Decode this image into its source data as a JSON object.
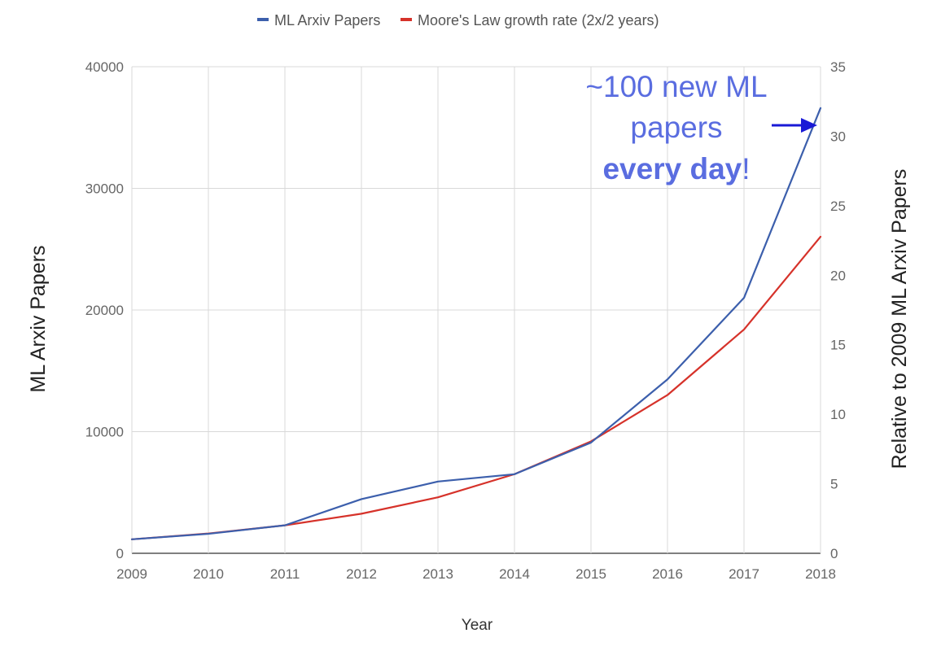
{
  "chart_data": {
    "type": "line",
    "title": "",
    "xlabel": "Year",
    "ylabel": "ML Arxiv Papers",
    "y2label": "Relative to 2009 ML Arxiv Papers",
    "categories": [
      "2009",
      "2010",
      "2011",
      "2012",
      "2013",
      "2014",
      "2015",
      "2016",
      "2017",
      "2018"
    ],
    "ylim": [
      0,
      40000
    ],
    "y2lim": [
      0,
      35
    ],
    "yticks": [
      "0",
      "10000",
      "20000",
      "30000",
      "40000"
    ],
    "y2ticks": [
      "0",
      "5",
      "10",
      "15",
      "20",
      "25",
      "30",
      "35"
    ],
    "grid": true,
    "legend_position": "top",
    "series": [
      {
        "name": "ML Arxiv Papers",
        "color": "#3c5fac",
        "values": [
          1150,
          1600,
          2300,
          4450,
          5900,
          6500,
          9100,
          14300,
          21000,
          36600
        ]
      },
      {
        "name": "Moore's Law growth rate (2x/2 years)",
        "color": "#d6322a",
        "values": [
          1150,
          1626,
          2300,
          3253,
          4600,
          6505,
          9200,
          13011,
          18400,
          26022
        ]
      }
    ],
    "annotation": {
      "line1": "~100 new ML",
      "line2": "papers",
      "line3_bold": "every day",
      "line3_end": "!",
      "color": "#5a6de0",
      "arrow_color": "#1a1ad6",
      "arrow_target_series": "ML Arxiv Papers",
      "arrow_target_category": "2018"
    }
  }
}
